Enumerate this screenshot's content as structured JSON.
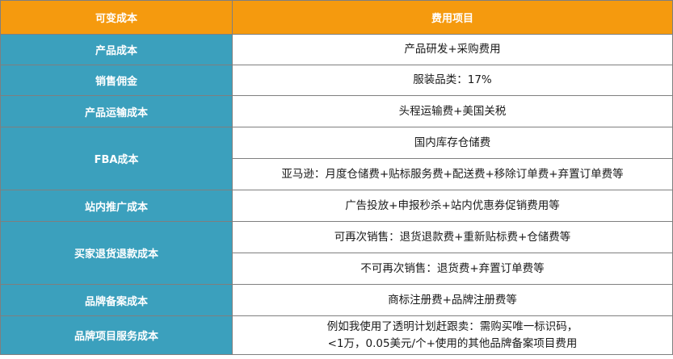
{
  "headers": {
    "category": "可变成本",
    "items": "费用项目"
  },
  "rows": [
    {
      "category": "产品成本",
      "items": [
        "产品研发+采购费用"
      ]
    },
    {
      "category": "销售佣金",
      "items": [
        "服装品类：17%"
      ]
    },
    {
      "category": "产品运输成本",
      "items": [
        "头程运输费+美国关税"
      ]
    },
    {
      "category": "FBA成本",
      "items": [
        "国内库存仓储费",
        "亚马逊：月度仓储费+贴标服务费+配送费+移除订单费+弃置订单费等"
      ]
    },
    {
      "category": "站内推广成本",
      "items": [
        "广告投放+申报秒杀+站内优惠券促销费用等"
      ]
    },
    {
      "category": "买家退货退款成本",
      "items": [
        "可再次销售：退货退款费+重新贴标费+仓储费等",
        "不可再次销售：退货费+弃置订单费等"
      ]
    },
    {
      "category": "品牌备案成本",
      "items": [
        "商标注册费+品牌注册费等"
      ]
    },
    {
      "category": "品牌项目服务成本",
      "items_multiline": [
        "例如我使用了透明计划赶跟卖：需购买唯一标识码，",
        "<1万，0.05美元/个+使用的其他品牌备案项目费用"
      ]
    }
  ]
}
